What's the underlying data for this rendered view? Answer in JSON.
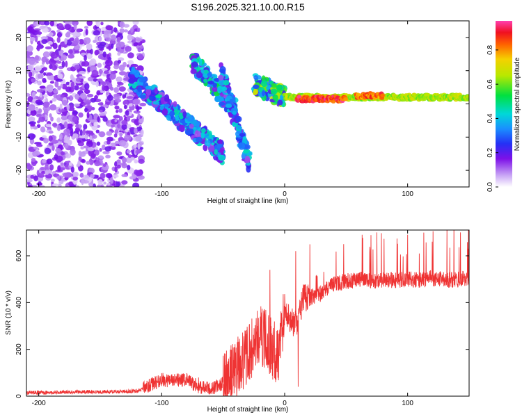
{
  "title": "S196.2025.321.10.00.R15",
  "chart_data": [
    {
      "type": "heatmap",
      "name": "spectrogram",
      "xlabel": "Height of straight line (km)",
      "ylabel": "Frequency (Hz)",
      "xlim": [
        -210,
        150
      ],
      "ylim": [
        -25,
        25
      ],
      "x_ticks": [
        -200,
        -100,
        0,
        100
      ],
      "y_ticks": [
        -20,
        -10,
        0,
        10,
        20
      ],
      "colorbar": {
        "label": "Normalized spectral amplitude",
        "range": [
          0,
          0.97
        ],
        "ticks": [
          0,
          0.2,
          0.4,
          0.6,
          0.8
        ]
      },
      "features": [
        {
          "label": "noise region",
          "x_range": [
            -210,
            -115
          ],
          "freq_range": [
            -25,
            25
          ],
          "amplitude": 0.12
        },
        {
          "label": "descending branch A",
          "x_range": [
            -125,
            -50
          ],
          "freq_start": 8,
          "freq_end": -15,
          "amplitude": 0.3
        },
        {
          "label": "descending branch B",
          "x_range": [
            -75,
            -40
          ],
          "freq_start": 13,
          "freq_end": -2,
          "amplitude": 0.35
        },
        {
          "label": "descending branch C",
          "x_range": [
            -52,
            -28
          ],
          "freq_start": 10,
          "freq_end": -19,
          "amplitude": 0.3
        },
        {
          "label": "converging band",
          "x_range": [
            -25,
            0
          ],
          "freq_start": 6,
          "freq_end": 2,
          "amplitude": 0.45
        },
        {
          "label": "carrier line",
          "x_range": [
            0,
            150
          ],
          "freq": 2,
          "amplitude": 0.7
        },
        {
          "label": "peak segment",
          "x_range": [
            10,
            50
          ],
          "freq": 1.5,
          "amplitude": 0.95
        },
        {
          "label": "peak segment",
          "x_range": [
            58,
            80
          ],
          "freq": 2.5,
          "amplitude": 0.9
        }
      ]
    },
    {
      "type": "line",
      "name": "snr",
      "xlabel": "Height of straight line (km)",
      "ylabel": "SNR (10 * v/v)",
      "xlim": [
        -210,
        150
      ],
      "ylim": [
        0,
        710
      ],
      "x_ticks": [
        -200,
        -100,
        0,
        100
      ],
      "y_ticks": [
        0,
        200,
        400,
        600
      ],
      "color": "#ef3333",
      "series": [
        {
          "name": "SNR",
          "x": [
            -210,
            -190,
            -170,
            -150,
            -130,
            -120,
            -110,
            -100,
            -90,
            -80,
            -70,
            -60,
            -50,
            -40,
            -35,
            -30,
            -25,
            -20,
            -15,
            -10,
            -5,
            0,
            5,
            10,
            15,
            20,
            30,
            40,
            50,
            60,
            70,
            80,
            90,
            100,
            110,
            120,
            130,
            140,
            150
          ],
          "values": [
            15,
            15,
            18,
            18,
            20,
            22,
            45,
            70,
            65,
            70,
            40,
            30,
            55,
            110,
            150,
            170,
            220,
            260,
            240,
            200,
            180,
            380,
            320,
            300,
            420,
            420,
            440,
            480,
            490,
            500,
            490,
            500,
            495,
            500,
            495,
            505,
            495,
            500,
            500
          ]
        }
      ],
      "spikes": [
        {
          "x": -70,
          "value": 80
        },
        {
          "x": -22,
          "value": 300
        },
        {
          "x": -12,
          "value": 540
        },
        {
          "x": 9,
          "value": 620
        },
        {
          "x": 11,
          "value": 40
        },
        {
          "x": 48,
          "value": 650
        },
        {
          "x": 63,
          "value": 690
        },
        {
          "x": 75,
          "value": 700
        },
        {
          "x": 100,
          "value": 690
        },
        {
          "x": 120,
          "value": 660
        },
        {
          "x": 143,
          "value": 700
        }
      ]
    }
  ]
}
